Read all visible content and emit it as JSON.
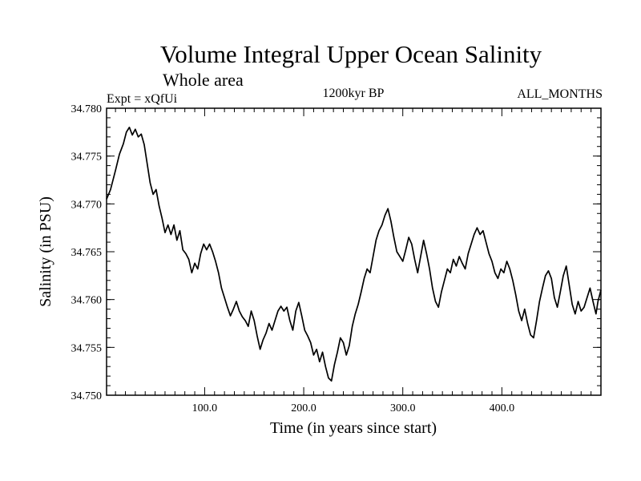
{
  "chart_data": {
    "type": "line",
    "title": "Volume Integral Upper Ocean Salinity",
    "subtitle": "Whole area",
    "annotation_left": "Expt = xQfUi",
    "annotation_center": "1200kyr BP",
    "annotation_right": "ALL_MONTHS",
    "xlabel": "Time (in years since start)",
    "ylabel": "Salinity (in PSU)",
    "xlim": [
      1,
      500
    ],
    "ylim": [
      34.75,
      34.78
    ],
    "xticks": [
      100,
      200,
      300,
      400
    ],
    "xtick_labels": [
      "100.0",
      "200.0",
      "300.0",
      "400.0"
    ],
    "yticks": [
      34.75,
      34.755,
      34.76,
      34.765,
      34.77,
      34.775,
      34.78
    ],
    "ytick_labels": [
      "34.750",
      "34.755",
      "34.760",
      "34.765",
      "34.770",
      "34.775",
      "34.780"
    ],
    "series": [
      {
        "name": "Salinity",
        "color": "#000000",
        "points": [
          [
            1,
            34.7705
          ],
          [
            5,
            34.7715
          ],
          [
            10,
            34.7735
          ],
          [
            14,
            34.7752
          ],
          [
            18,
            34.7763
          ],
          [
            21,
            34.7775
          ],
          [
            24,
            34.778
          ],
          [
            27,
            34.7772
          ],
          [
            30,
            34.7778
          ],
          [
            33,
            34.777
          ],
          [
            36,
            34.7773
          ],
          [
            39,
            34.7762
          ],
          [
            42,
            34.7742
          ],
          [
            45,
            34.7722
          ],
          [
            48,
            34.771
          ],
          [
            51,
            34.7715
          ],
          [
            54,
            34.7698
          ],
          [
            57,
            34.7685
          ],
          [
            60,
            34.767
          ],
          [
            63,
            34.7678
          ],
          [
            66,
            34.7668
          ],
          [
            69,
            34.7678
          ],
          [
            72,
            34.7662
          ],
          [
            75,
            34.7672
          ],
          [
            78,
            34.7652
          ],
          [
            81,
            34.7648
          ],
          [
            84,
            34.7642
          ],
          [
            87,
            34.7628
          ],
          [
            90,
            34.7638
          ],
          [
            93,
            34.7632
          ],
          [
            96,
            34.7648
          ],
          [
            99,
            34.7658
          ],
          [
            102,
            34.7652
          ],
          [
            105,
            34.7658
          ],
          [
            108,
            34.765
          ],
          [
            111,
            34.764
          ],
          [
            114,
            34.7628
          ],
          [
            117,
            34.7612
          ],
          [
            120,
            34.7602
          ],
          [
            123,
            34.7592
          ],
          [
            126,
            34.7583
          ],
          [
            129,
            34.759
          ],
          [
            132,
            34.7598
          ],
          [
            135,
            34.7588
          ],
          [
            138,
            34.7582
          ],
          [
            141,
            34.7578
          ],
          [
            144,
            34.7572
          ],
          [
            147,
            34.7588
          ],
          [
            150,
            34.7578
          ],
          [
            153,
            34.7562
          ],
          [
            156,
            34.7548
          ],
          [
            159,
            34.7558
          ],
          [
            162,
            34.7565
          ],
          [
            165,
            34.7575
          ],
          [
            168,
            34.7568
          ],
          [
            171,
            34.7578
          ],
          [
            174,
            34.7588
          ],
          [
            177,
            34.7593
          ],
          [
            180,
            34.7588
          ],
          [
            183,
            34.7592
          ],
          [
            186,
            34.7578
          ],
          [
            189,
            34.7568
          ],
          [
            192,
            34.7588
          ],
          [
            195,
            34.7597
          ],
          [
            198,
            34.7583
          ],
          [
            201,
            34.7568
          ],
          [
            204,
            34.7562
          ],
          [
            207,
            34.7555
          ],
          [
            210,
            34.7542
          ],
          [
            213,
            34.7548
          ],
          [
            216,
            34.7535
          ],
          [
            219,
            34.7545
          ],
          [
            222,
            34.753
          ],
          [
            225,
            34.7518
          ],
          [
            228,
            34.7515
          ],
          [
            231,
            34.7532
          ],
          [
            234,
            34.7545
          ],
          [
            237,
            34.756
          ],
          [
            240,
            34.7555
          ],
          [
            243,
            34.7542
          ],
          [
            246,
            34.7552
          ],
          [
            249,
            34.7572
          ],
          [
            252,
            34.7585
          ],
          [
            255,
            34.7595
          ],
          [
            258,
            34.7608
          ],
          [
            261,
            34.7622
          ],
          [
            264,
            34.7632
          ],
          [
            267,
            34.7628
          ],
          [
            270,
            34.7645
          ],
          [
            273,
            34.7662
          ],
          [
            276,
            34.7672
          ],
          [
            279,
            34.7678
          ],
          [
            282,
            34.7688
          ],
          [
            285,
            34.7695
          ],
          [
            288,
            34.7682
          ],
          [
            291,
            34.7665
          ],
          [
            294,
            34.765
          ],
          [
            297,
            34.7645
          ],
          [
            300,
            34.764
          ],
          [
            303,
            34.7652
          ],
          [
            306,
            34.7665
          ],
          [
            309,
            34.7658
          ],
          [
            312,
            34.7642
          ],
          [
            315,
            34.7628
          ],
          [
            318,
            34.7645
          ],
          [
            321,
            34.7662
          ],
          [
            324,
            34.7648
          ],
          [
            327,
            34.7632
          ],
          [
            330,
            34.7612
          ],
          [
            333,
            34.7598
          ],
          [
            336,
            34.7592
          ],
          [
            339,
            34.7608
          ],
          [
            342,
            34.762
          ],
          [
            345,
            34.7632
          ],
          [
            348,
            34.7628
          ],
          [
            351,
            34.7642
          ],
          [
            354,
            34.7635
          ],
          [
            357,
            34.7645
          ],
          [
            360,
            34.7638
          ],
          [
            363,
            34.7632
          ],
          [
            366,
            34.7648
          ],
          [
            369,
            34.7658
          ],
          [
            372,
            34.7668
          ],
          [
            375,
            34.7675
          ],
          [
            378,
            34.7668
          ],
          [
            381,
            34.7672
          ],
          [
            384,
            34.766
          ],
          [
            387,
            34.7648
          ],
          [
            390,
            34.764
          ],
          [
            393,
            34.7628
          ],
          [
            396,
            34.7622
          ],
          [
            399,
            34.7632
          ],
          [
            402,
            34.7628
          ],
          [
            405,
            34.764
          ],
          [
            408,
            34.7632
          ],
          [
            411,
            34.762
          ],
          [
            414,
            34.7605
          ],
          [
            417,
            34.7588
          ],
          [
            420,
            34.7578
          ],
          [
            423,
            34.759
          ],
          [
            426,
            34.7575
          ],
          [
            429,
            34.7563
          ],
          [
            432,
            34.756
          ],
          [
            435,
            34.7578
          ],
          [
            438,
            34.7598
          ],
          [
            441,
            34.7612
          ],
          [
            444,
            34.7625
          ],
          [
            447,
            34.763
          ],
          [
            450,
            34.7622
          ],
          [
            453,
            34.7602
          ],
          [
            456,
            34.7592
          ],
          [
            459,
            34.7608
          ],
          [
            462,
            34.7625
          ],
          [
            465,
            34.7635
          ],
          [
            468,
            34.7615
          ],
          [
            471,
            34.7595
          ],
          [
            474,
            34.7585
          ],
          [
            477,
            34.7598
          ],
          [
            480,
            34.7588
          ],
          [
            483,
            34.7592
          ],
          [
            486,
            34.7602
          ],
          [
            489,
            34.7612
          ],
          [
            492,
            34.7598
          ],
          [
            495,
            34.7585
          ],
          [
            497,
            34.7598
          ],
          [
            500,
            34.761
          ]
        ]
      }
    ]
  }
}
